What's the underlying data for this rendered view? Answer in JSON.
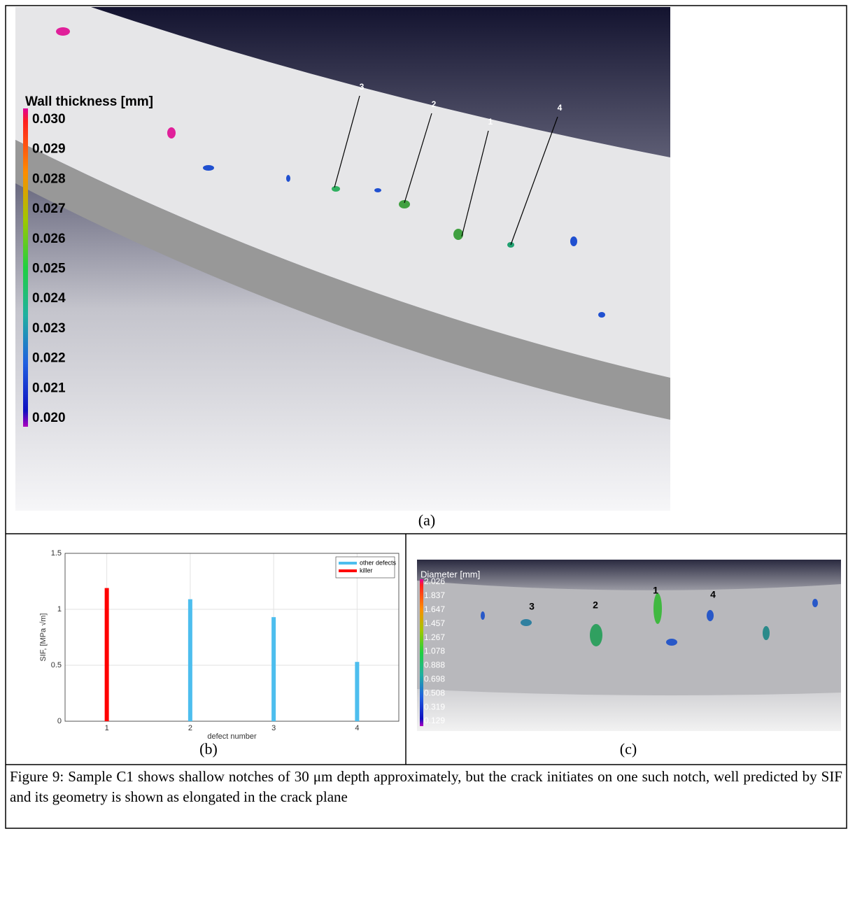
{
  "panel_a": {
    "colorbar_title": "Wall thickness [mm]",
    "colorbar_labels": [
      "0.030",
      "0.029",
      "0.028",
      "0.027",
      "0.026",
      "0.025",
      "0.024",
      "0.023",
      "0.022",
      "0.021",
      "0.020"
    ],
    "defect_labels": [
      "3",
      "2",
      "1",
      "4"
    ],
    "label": "(a)"
  },
  "chart_data": {
    "type": "bar",
    "categories": [
      "1",
      "2",
      "3",
      "4"
    ],
    "series": [
      {
        "name": "other defects",
        "color": "#4dbeee",
        "values": [
          null,
          1.09,
          0.93,
          0.53
        ]
      },
      {
        "name": "killer",
        "color": "#ff0000",
        "values": [
          1.19,
          null,
          null,
          null
        ]
      }
    ],
    "x_label": "defect number",
    "y_label": "SIF, [MPa √m]",
    "ylim": [
      0,
      1.5
    ],
    "yticks": [
      0,
      0.5,
      1,
      1.5
    ],
    "grid": true,
    "legend": "upper right"
  },
  "panel_b": {
    "label": "(b)"
  },
  "panel_c": {
    "colorbar_title": "Diameter [mm]",
    "colorbar_labels": [
      "2.026",
      "1.837",
      "1.647",
      "1.457",
      "1.267",
      "1.078",
      "0.888",
      "0.698",
      "0.508",
      "0.319",
      "0.129"
    ],
    "defect_labels": [
      "3",
      "2",
      "1",
      "4"
    ],
    "label": "(c)"
  },
  "caption": "Figure 9: Sample C1 shows shallow notches of 30 μm depth approximately, but the crack initiates on one such notch, well predicted by SIF and its geometry is shown as elongated in the crack plane"
}
